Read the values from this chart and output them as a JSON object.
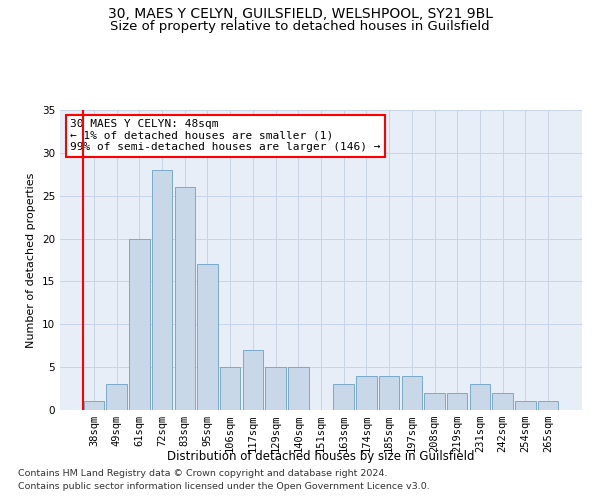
{
  "title1": "30, MAES Y CELYN, GUILSFIELD, WELSHPOOL, SY21 9BL",
  "title2": "Size of property relative to detached houses in Guilsfield",
  "xlabel": "Distribution of detached houses by size in Guilsfield",
  "ylabel": "Number of detached properties",
  "categories": [
    "38sqm",
    "49sqm",
    "61sqm",
    "72sqm",
    "83sqm",
    "95sqm",
    "106sqm",
    "117sqm",
    "129sqm",
    "140sqm",
    "151sqm",
    "163sqm",
    "174sqm",
    "185sqm",
    "197sqm",
    "208sqm",
    "219sqm",
    "231sqm",
    "242sqm",
    "254sqm",
    "265sqm"
  ],
  "values": [
    1,
    3,
    20,
    28,
    26,
    17,
    5,
    7,
    5,
    5,
    0,
    3,
    4,
    4,
    4,
    2,
    2,
    3,
    2,
    1,
    1
  ],
  "bar_color": "#c8d8e8",
  "bar_edge_color": "#7aaac8",
  "annotation_line1": "30 MAES Y CELYN: 48sqm",
  "annotation_line2": "← 1% of detached houses are smaller (1)",
  "annotation_line3": "99% of semi-detached houses are larger (146) →",
  "vline_color": "red",
  "vline_x": -0.5,
  "footer1": "Contains HM Land Registry data © Crown copyright and database right 2024.",
  "footer2": "Contains public sector information licensed under the Open Government Licence v3.0.",
  "ylim": [
    0,
    35
  ],
  "yticks": [
    0,
    5,
    10,
    15,
    20,
    25,
    30,
    35
  ],
  "grid_color": "#c8d4e8",
  "bg_color": "#e8eef8",
  "title1_fontsize": 10,
  "title2_fontsize": 9.5,
  "xlabel_fontsize": 8.5,
  "ylabel_fontsize": 8,
  "tick_fontsize": 7.5,
  "footer_fontsize": 6.8,
  "annotation_fontsize": 8
}
